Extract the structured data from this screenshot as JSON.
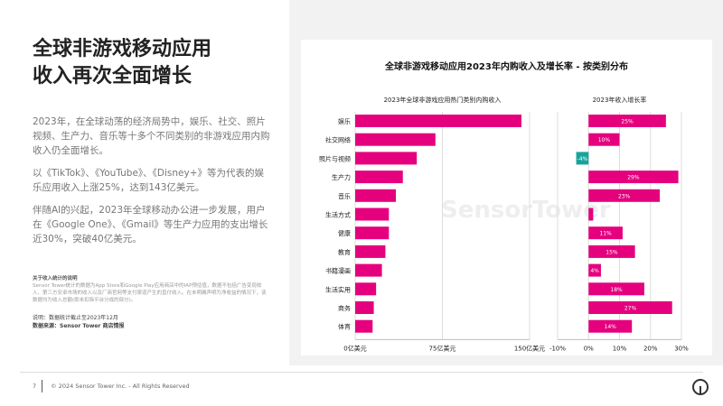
{
  "heading": [
    "全球非游戏移动应用",
    "收入再次全面增长"
  ],
  "paragraphs": [
    "2023年，在全球动荡的经济局势中，娱乐、社交、照片视频、生产力、音乐等十多个不同类别的非游戏应用内购收入仍全面增长。",
    "以《TikTok》、《YouTube》、《Disney+》等为代表的娱乐应用收入上涨25%，达到143亿美元。",
    "伴随AI的兴起，2023年全球移动办公进一步发展，用户在《Google One》、《Gmail》等生产力应用的支出增长近30%，突破40亿美元。"
  ],
  "note": {
    "title": "关于收入统计的说明",
    "body": "Sensor Tower统计的数据为App Store和Google Play应用商店中的IAP预估值，数据不包括广告变现收入、第三方安卓市场的收入以及厂商官网等支付渠道产生的直付收入。在未明确声明为净收益的情况下，该数据均为收入总额(即未扣除平台分成的部分)。"
  },
  "source": {
    "desc": "说明：数据统计截止至2023年12月",
    "src": "数据来源：Sensor Tower 商店情报"
  },
  "footer": {
    "page": "7",
    "copyright": "© 2024 Sensor Tower Inc. - All Rights Reserved"
  },
  "watermark": "SensorTower",
  "colors": {
    "bar": "#e5007e",
    "negative": "#1aa39a"
  },
  "chart_data": {
    "title": "全球非游戏移动应用2023年内购收入及增长率 - 按类别分布",
    "type": "bar",
    "categories": [
      "娱乐",
      "社交网络",
      "照片与视频",
      "生产力",
      "音乐",
      "生活方式",
      "健康",
      "教育",
      "书籍漫画",
      "生活实用",
      "商务",
      "体育"
    ],
    "revenue": {
      "subtitle": "2023年全球非游戏应用热门类别内购收入",
      "unit": "亿美元",
      "values": [
        143,
        69,
        53,
        41,
        35,
        29,
        29,
        26,
        23,
        18,
        16,
        15
      ],
      "xlim": [
        0,
        150
      ],
      "ticks": [
        "0亿美元",
        "75亿美元",
        "150亿美元"
      ],
      "tick_values": [
        0,
        75,
        150
      ]
    },
    "growth": {
      "subtitle": "2023年收入增长率",
      "values": [
        25,
        10,
        -4,
        29,
        23,
        1.5,
        11,
        15,
        4,
        18,
        27,
        14
      ],
      "labels": [
        "25%",
        "10%",
        "-4%",
        "29%",
        "23%",
        "",
        "11%",
        "15%",
        "4%",
        "18%",
        "27%",
        "14%"
      ],
      "xlim": [
        -10,
        30
      ],
      "ticks": [
        "-10%",
        "0%",
        "10%",
        "20%",
        "30%"
      ],
      "tick_values": [
        -10,
        0,
        10,
        20,
        30
      ]
    }
  }
}
